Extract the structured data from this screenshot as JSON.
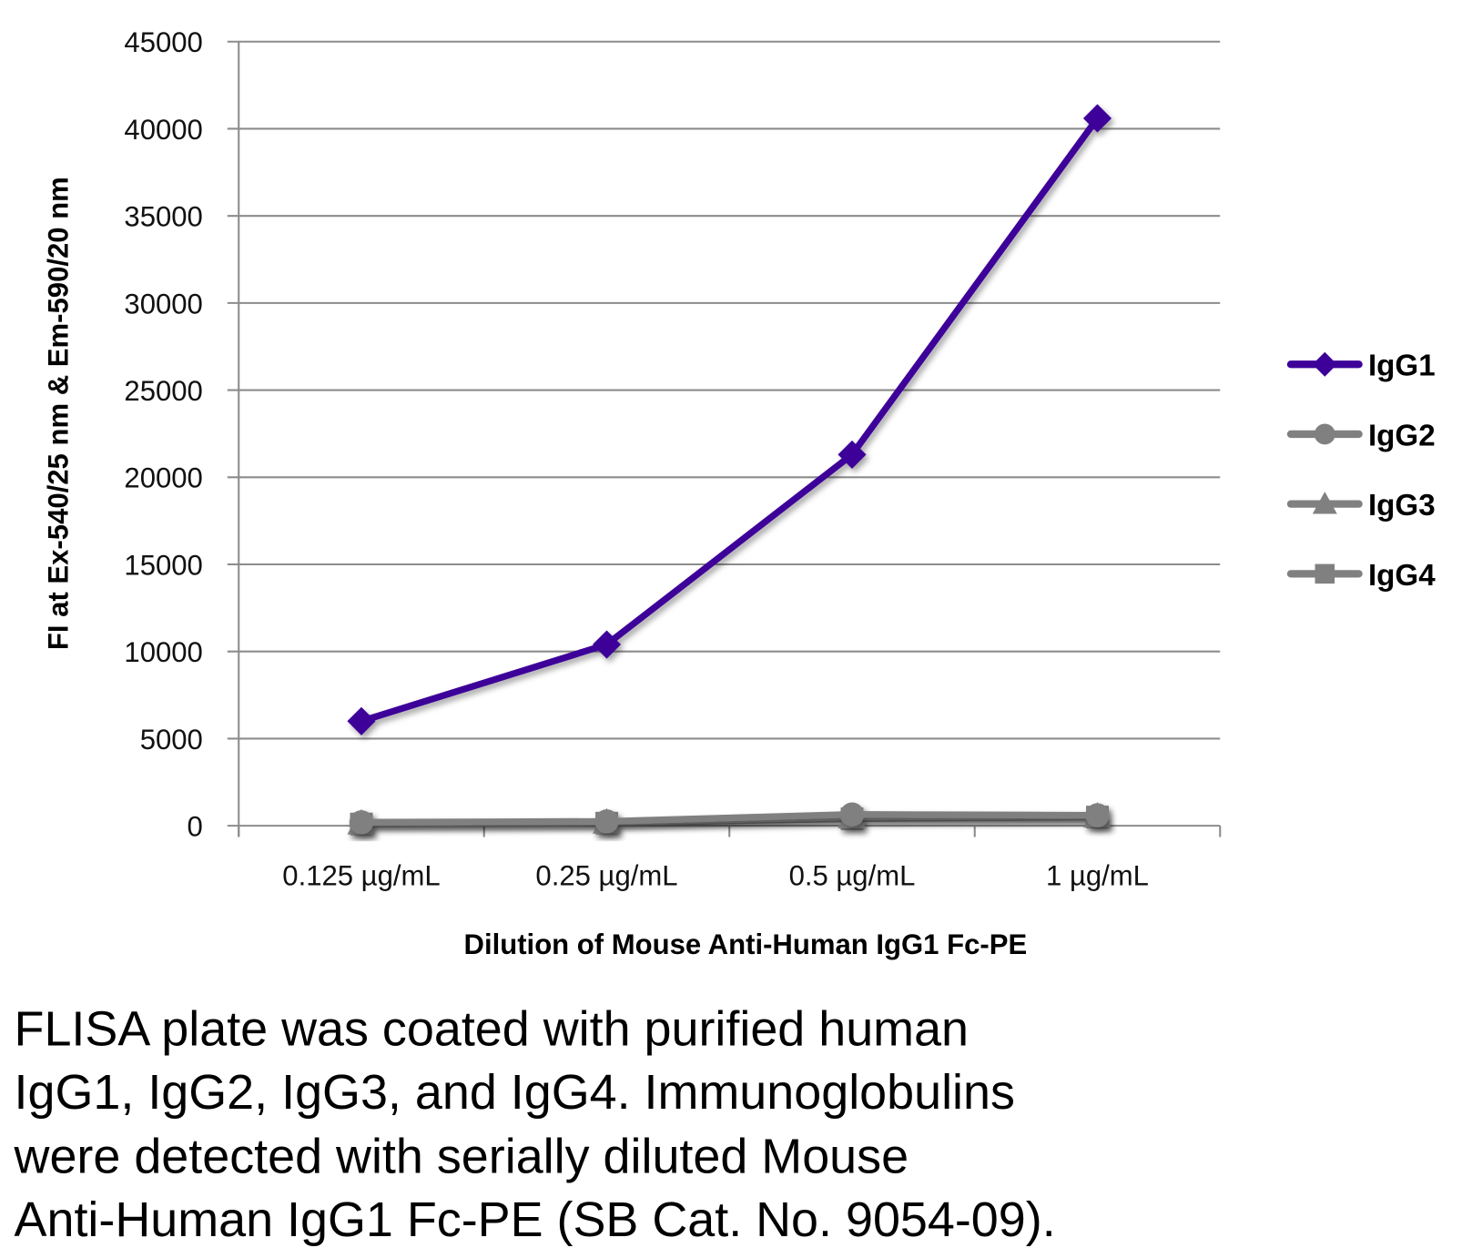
{
  "chart_data": {
    "type": "line",
    "categories": [
      "0.125 µg/mL",
      "0.25 µg/mL",
      "0.5 µg/mL",
      "1 µg/mL"
    ],
    "series": [
      {
        "name": "IgG1",
        "values": [
          6000,
          10400,
          21300,
          40600
        ],
        "color": "#3d0099",
        "marker": "diamond"
      },
      {
        "name": "IgG2",
        "values": [
          200,
          250,
          650,
          600
        ],
        "color": "#808080",
        "marker": "circle"
      },
      {
        "name": "IgG3",
        "values": [
          150,
          200,
          500,
          550
        ],
        "color": "#808080",
        "marker": "triangle"
      },
      {
        "name": "IgG4",
        "values": [
          100,
          150,
          400,
          500
        ],
        "color": "#808080",
        "marker": "square"
      }
    ],
    "xlabel": "Dilution of Mouse Anti-Human IgG1 Fc-PE",
    "ylabel": "FI at Ex-540/25 nm & Em-590/20 nm",
    "ylim": [
      0,
      45000
    ],
    "yticks": [
      "0",
      "5000",
      "10000",
      "15000",
      "20000",
      "25000",
      "30000",
      "35000",
      "40000",
      "45000"
    ],
    "grid": "horizontal",
    "legend": "right"
  },
  "caption": [
    "FLISA plate was coated with purified human",
    "IgG1, IgG2, IgG3, and IgG4.  Immunoglobulins",
    "were detected with serially diluted Mouse",
    "Anti-Human IgG1 Fc-PE (SB Cat. No. 9054-09)."
  ]
}
